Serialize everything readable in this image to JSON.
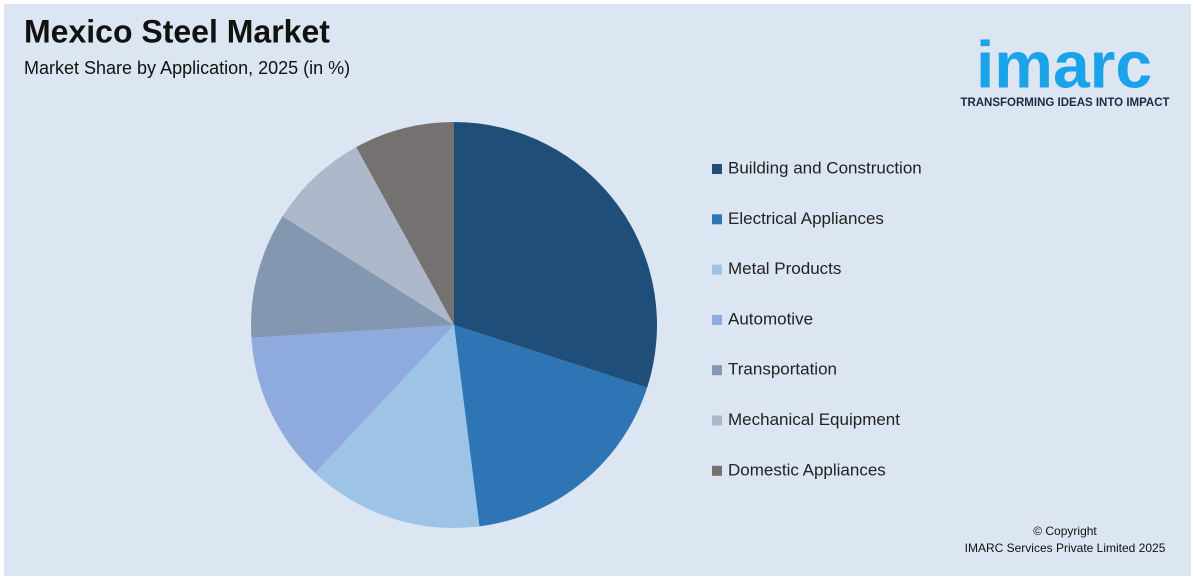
{
  "chart_data": {
    "type": "pie",
    "title": "Mexico Steel Market",
    "subtitle": "Market Share by Application, 2025 (in %)",
    "categories": [
      "Building and Construction",
      "Electrical Appliances",
      "Metal Products",
      "Automotive",
      "Transportation",
      "Mechanical Equipment",
      "Domestic Appliances"
    ],
    "values": [
      30,
      18,
      14,
      12,
      10,
      8,
      8
    ],
    "colors": [
      "#1f4e79",
      "#2e75b6",
      "#9dc3e6",
      "#8faadc",
      "#8497b0",
      "#adb9ca",
      "#767171"
    ],
    "legend": "right"
  },
  "branding": {
    "logo": "imarc",
    "tagline": "TRANSFORMING IDEAS INTO IMPACT",
    "copyright": "© Copyright",
    "company": "IMARC Services Private Limited 2025"
  }
}
